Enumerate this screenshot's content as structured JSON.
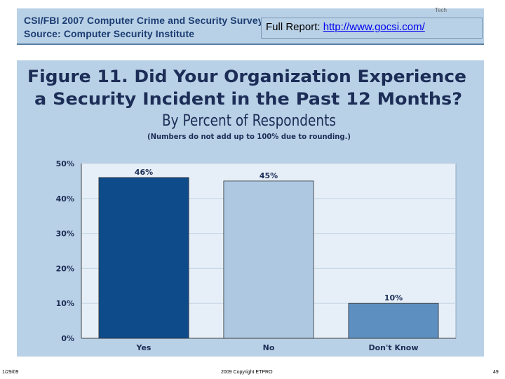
{
  "header": {
    "line1": "CSI/FBI 2007 Computer Crime and Security Survey",
    "line2": "Source: Computer Security Institute",
    "tiny_mark": "Tech"
  },
  "report_callout": {
    "prefix": "Full Report: ",
    "link": "http://www.gocsi.com/"
  },
  "footer": {
    "date": "1/29/09",
    "copyright": "2009 Copyright ETPRO",
    "page": "49"
  },
  "colors": {
    "panel_bg": "#b9d1e6",
    "plot_bg": "#e6eff7",
    "bar_yes": "#0e4b8a",
    "bar_no": "#aec8e2",
    "bar_dk": "#5d8fc0",
    "title": "#1c2d57"
  },
  "chart_data": {
    "type": "bar",
    "title_line1": "Figure 11. Did Your Organization Experience",
    "title_line2": "a Security Incident in the Past 12 Months?",
    "subtitle": "By Percent of Respondents",
    "note": "(Numbers do not add up to 100% due to rounding.)",
    "categories": [
      "Yes",
      "No",
      "Don't Know"
    ],
    "values": [
      46,
      45,
      10
    ],
    "value_labels": [
      "46%",
      "45%",
      "10%"
    ],
    "yticks": [
      0,
      10,
      20,
      30,
      40,
      50
    ],
    "ytick_labels": [
      "0%",
      "10%",
      "20%",
      "30%",
      "40%",
      "50%"
    ],
    "ylim": [
      0,
      50
    ],
    "grid": true
  }
}
